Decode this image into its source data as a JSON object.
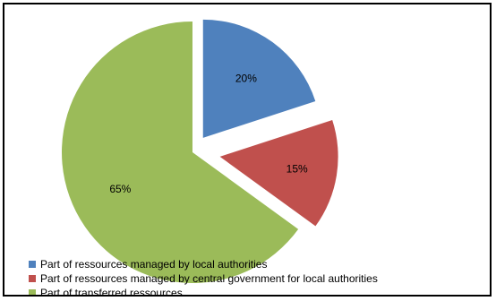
{
  "chart_data": {
    "type": "pie",
    "categories": [
      "Part of ressources managed by local authorities",
      "Part of ressources managed by central government for local authorities",
      "Part of transferred ressources"
    ],
    "values": [
      20,
      15,
      65
    ],
    "data_labels": [
      "20%",
      "15%",
      "65%"
    ],
    "colors": [
      "#4F81BD",
      "#C0504D",
      "#9BBB59"
    ],
    "exploded": true,
    "legend_position": "bottom-left",
    "title": ""
  }
}
